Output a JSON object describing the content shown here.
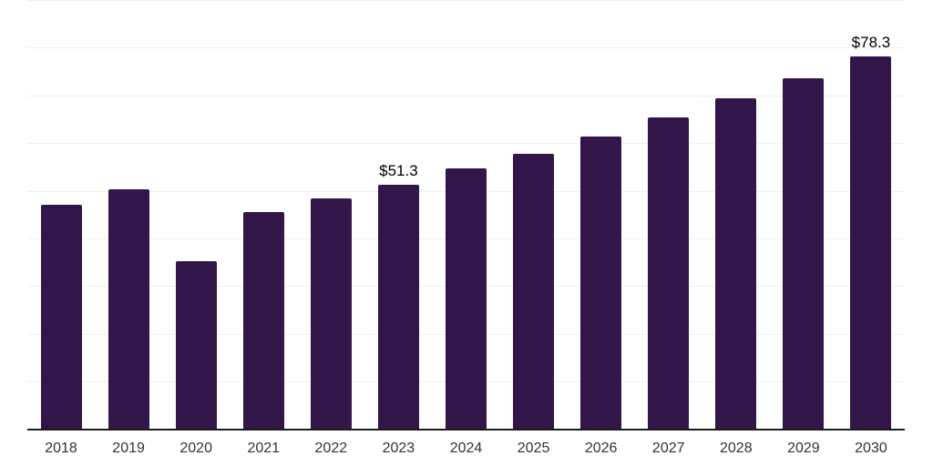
{
  "chart_data": {
    "type": "bar",
    "title": "",
    "xlabel": "",
    "ylabel": "",
    "categories": [
      "2018",
      "2019",
      "2020",
      "2021",
      "2022",
      "2023",
      "2024",
      "2025",
      "2026",
      "2027",
      "2028",
      "2029",
      "2030"
    ],
    "values": [
      47.2,
      50.4,
      35.4,
      45.6,
      48.5,
      51.3,
      54.8,
      57.9,
      61.4,
      65.5,
      69.4,
      73.6,
      78.3
    ],
    "point_labels": [
      "",
      "",
      "",
      "",
      "",
      "$51.3",
      "",
      "",
      "",
      "",
      "",
      "",
      "$78.3"
    ],
    "ylim": [
      0,
      90
    ],
    "grid_step": 10,
    "grid_on": true,
    "legend": "none",
    "colors": {
      "bar": "#321549",
      "axis_line": "#1c1c1c",
      "gridline": "#f1f1f1",
      "tick_label": "#333333",
      "value_label": "#000000",
      "background": "#ffffff"
    }
  }
}
